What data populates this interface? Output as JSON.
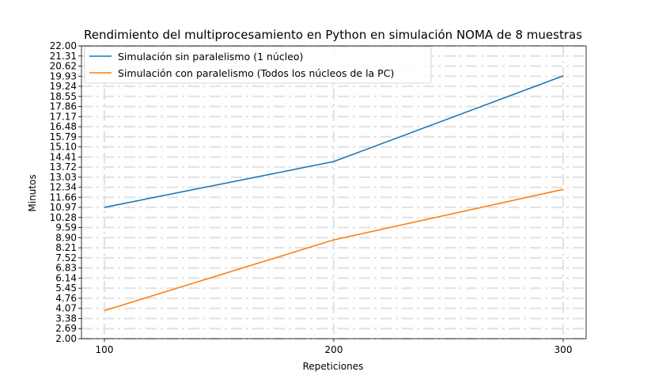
{
  "chart_data": {
    "type": "line",
    "title": "Rendimiento del multiprocesamiento en Python en simulación NOMA de 8 muestras",
    "xlabel": "Repeticiones",
    "ylabel": "Minutos",
    "x": [
      100,
      200,
      300
    ],
    "x_ticks": [
      "100",
      "200",
      "300"
    ],
    "xlim": [
      90,
      310
    ],
    "ylim": [
      2.0,
      22.0
    ],
    "y_ticks": [
      "2.00",
      "2.69",
      "3.38",
      "4.07",
      "4.76",
      "5.45",
      "6.14",
      "6.83",
      "7.52",
      "8.21",
      "8.90",
      "9.59",
      "10.28",
      "10.97",
      "11.66",
      "12.34",
      "13.03",
      "13.72",
      "14.41",
      "15.10",
      "15.79",
      "16.48",
      "17.17",
      "17.86",
      "18.55",
      "19.24",
      "19.93",
      "20.62",
      "21.31",
      "22.00"
    ],
    "grid": true,
    "legend_position": "top-left",
    "series": [
      {
        "name": "Simulación sin paralelismo (1 núcleo)",
        "color": "#1f77b4",
        "values": [
          10.97,
          14.1,
          19.95
        ]
      },
      {
        "name": "Simulación con paralelismo (Todos los núcleos de la PC)",
        "color": "#ff7f0e",
        "values": [
          3.92,
          8.75,
          12.2
        ]
      }
    ]
  }
}
